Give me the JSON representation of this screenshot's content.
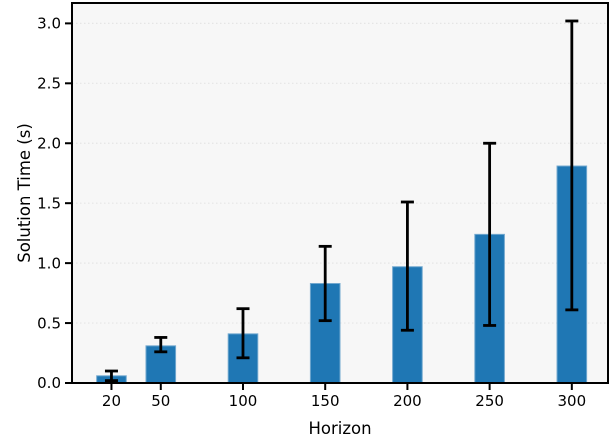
{
  "chart_data": {
    "type": "bar",
    "title": "",
    "xlabel": "Horizon",
    "ylabel": "Solution Time (s)",
    "categories": [
      20,
      50,
      100,
      150,
      200,
      250,
      300
    ],
    "xtick_labels": [
      "20",
      "50",
      "100",
      "150",
      "200",
      "250",
      "300"
    ],
    "values": [
      0.06,
      0.31,
      0.41,
      0.83,
      0.97,
      1.24,
      1.81
    ],
    "error_low": [
      0.02,
      0.26,
      0.21,
      0.52,
      0.44,
      0.48,
      0.61
    ],
    "error_high": [
      0.1,
      0.38,
      0.62,
      1.14,
      1.51,
      2.0,
      3.02
    ],
    "yticks": [
      0.0,
      0.5,
      1.0,
      1.5,
      2.0,
      2.5,
      3.0
    ],
    "ytick_labels": [
      "0.0",
      "0.5",
      "1.0",
      "1.5",
      "2.0",
      "2.5",
      "3.0"
    ],
    "xlim": [
      -4,
      322
    ],
    "ylim": [
      0,
      3.17
    ],
    "bar_width_units": 18,
    "grid": true,
    "legend": false,
    "colors": {
      "bar_fill": "#1f77b4",
      "bar_edge": "#72a8cf",
      "error_bar": "#000000",
      "axes_background": "#f7f7f7",
      "gridline": "#e5e5e5",
      "spine": "#000000",
      "text": "#000000"
    }
  }
}
